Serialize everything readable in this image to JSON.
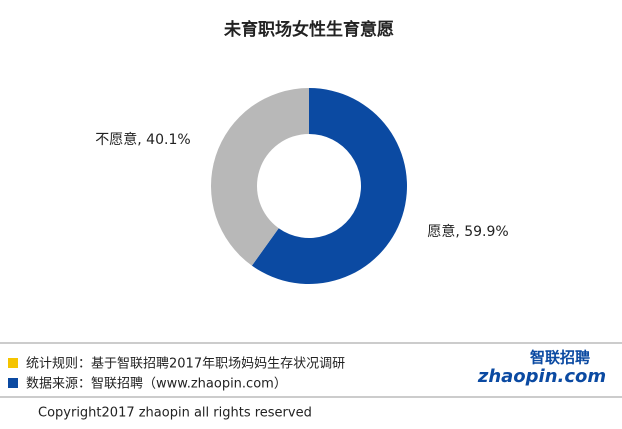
{
  "chart_data": {
    "type": "donut",
    "title": "未育职场女性生育意愿",
    "values": [
      59.9,
      40.1
    ],
    "value_labels": [
      "愿意, 59.9%",
      "不愿意, 40.1%"
    ],
    "colors": [
      "#0b4aa2",
      "#b8b8b8"
    ]
  },
  "footer": {
    "notes": [
      "统计规则：基于智联招聘2017年职场妈妈生存状况调研",
      "数据来源：智联招聘（www.zhaopin.com）"
    ],
    "note_colors": [
      "#f5c400",
      "#0b4aa2"
    ],
    "logo": {
      "cn": "智联招聘",
      "en": "zhaopin.com"
    },
    "copyright": "Copyright2017 zhaopin all rights reserved"
  }
}
